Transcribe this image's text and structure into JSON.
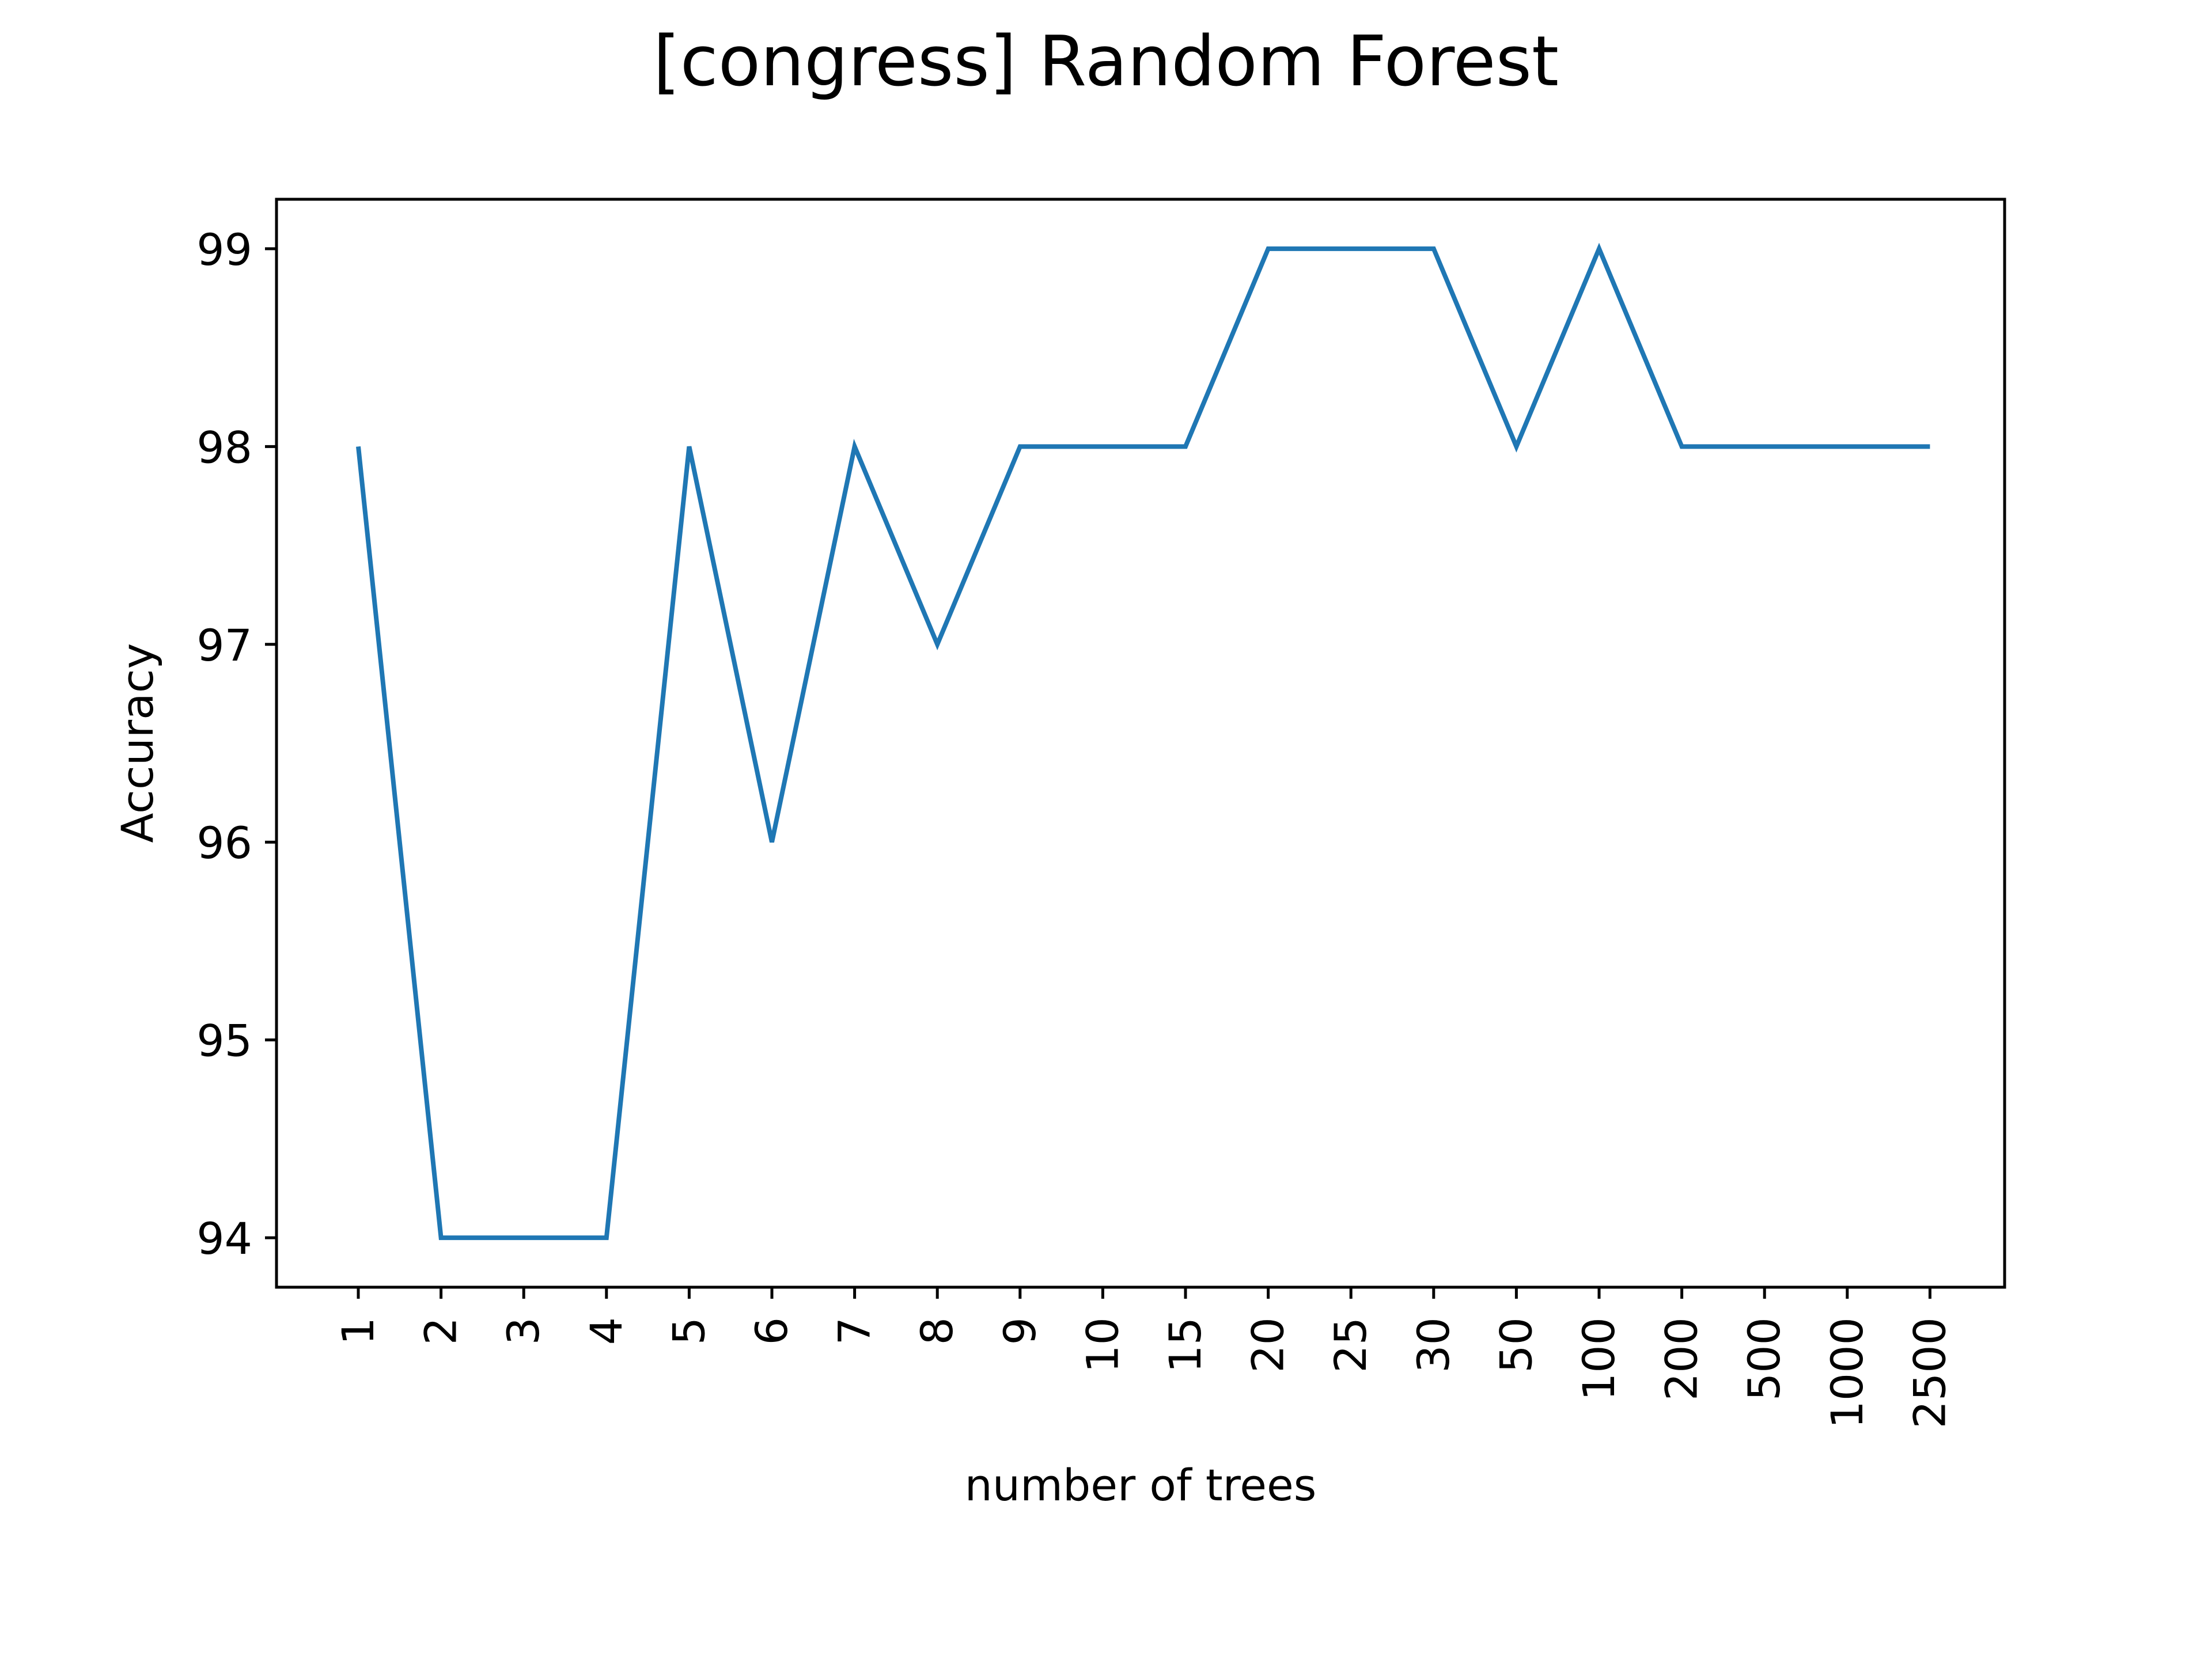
{
  "chart_data": {
    "type": "line",
    "title": "[congress] Random Forest",
    "xlabel": "number of trees",
    "ylabel": "Accuracy",
    "categories": [
      "1",
      "2",
      "3",
      "4",
      "5",
      "6",
      "7",
      "8",
      "9",
      "10",
      "15",
      "20",
      "25",
      "30",
      "50",
      "100",
      "200",
      "500",
      "1000",
      "2500"
    ],
    "series": [
      {
        "values": [
          98,
          94,
          94,
          94,
          98,
          96,
          98,
          97,
          98,
          98,
          98,
          99,
          99,
          99,
          98,
          99,
          98,
          98,
          98,
          98
        ],
        "color": "#1f77b4"
      }
    ],
    "yticks": [
      94,
      95,
      96,
      97,
      98,
      99
    ],
    "ylim": [
      93.75,
      99.25
    ],
    "grid": false,
    "legend": "none"
  }
}
